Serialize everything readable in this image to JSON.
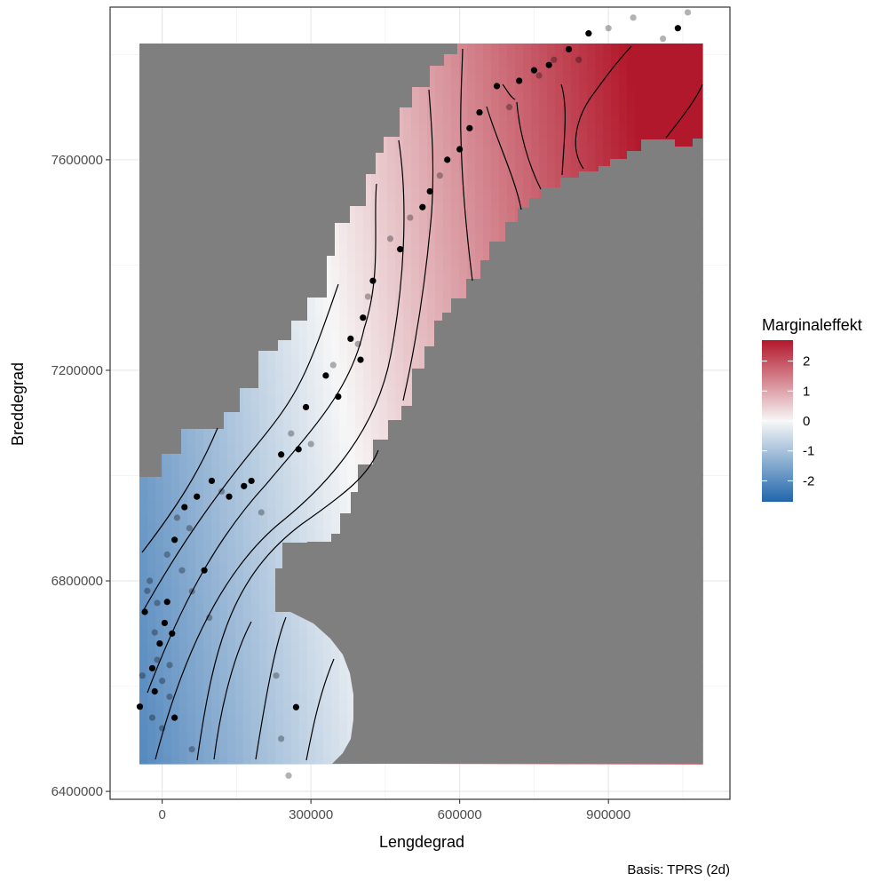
{
  "chart_data": {
    "type": "heatmap",
    "xlabel": "Lengdegrad",
    "ylabel": "Breddegrad",
    "caption": "Basis: TPRS (2d)",
    "xlim": [
      -105000,
      1145000
    ],
    "ylim": [
      6385000,
      7890000
    ],
    "x_ticks": [
      0,
      300000,
      600000,
      900000
    ],
    "x_tick_labels": [
      "0",
      "300000",
      "600000",
      "900000"
    ],
    "y_ticks": [
      6400000,
      6800000,
      7200000,
      7600000
    ],
    "y_tick_labels": [
      "6400000",
      "6800000",
      "7200000",
      "7600000"
    ],
    "grid": true,
    "legend": {
      "title": "Marginaleffekt",
      "position": "right",
      "range": [
        -2.7,
        2.7
      ],
      "breaks": [
        2,
        1,
        0,
        -1,
        -2
      ],
      "break_labels": [
        "2",
        "1",
        "0",
        "-1",
        "-2"
      ],
      "low_color": "#2166ac",
      "mid_color": "#f7f7f7",
      "high_color": "#b2182b"
    },
    "mask_color": "#7f7f7f",
    "points": [
      [
        -45000,
        6561000,
        1
      ],
      [
        -35000,
        6741000,
        1
      ],
      [
        -30000,
        6781000,
        0.3
      ],
      [
        -20000,
        6634000,
        1
      ],
      [
        -15000,
        6702000,
        0.3
      ],
      [
        -10000,
        6758000,
        0.3
      ],
      [
        -5000,
        6681000,
        1
      ],
      [
        0,
        6610000,
        0.3
      ],
      [
        5000,
        6720000,
        1
      ],
      [
        10000,
        6850000,
        0.3
      ],
      [
        15000,
        6640000,
        0.3
      ],
      [
        20000,
        6700000,
        1
      ],
      [
        25000,
        6878000,
        1
      ],
      [
        30000,
        6920000,
        0.3
      ],
      [
        45000,
        6940000,
        1
      ],
      [
        60000,
        6780000,
        0.3
      ],
      [
        70000,
        6960000,
        1
      ],
      [
        85000,
        6820000,
        1
      ],
      [
        95000,
        6730000,
        0.3
      ],
      [
        100000,
        6990000,
        1
      ],
      [
        120000,
        6970000,
        0.3
      ],
      [
        135000,
        6960000,
        1
      ],
      [
        165000,
        6980000,
        1
      ],
      [
        180000,
        6990000,
        1
      ],
      [
        240000,
        7040000,
        1
      ],
      [
        260000,
        7080000,
        0.3
      ],
      [
        275000,
        7050000,
        1
      ],
      [
        290000,
        7130000,
        1
      ],
      [
        300000,
        7060000,
        0.3
      ],
      [
        330000,
        7190000,
        1
      ],
      [
        345000,
        7210000,
        0.3
      ],
      [
        355000,
        7150000,
        1
      ],
      [
        380000,
        7260000,
        1
      ],
      [
        395000,
        7250000,
        0.3
      ],
      [
        400000,
        7220000,
        1
      ],
      [
        405000,
        7300000,
        1
      ],
      [
        415000,
        7340000,
        0.3
      ],
      [
        425000,
        7370000,
        1
      ],
      [
        460000,
        7450000,
        0.3
      ],
      [
        480000,
        7430000,
        1
      ],
      [
        500000,
        7490000,
        0.3
      ],
      [
        525000,
        7510000,
        1
      ],
      [
        540000,
        7540000,
        1
      ],
      [
        560000,
        7570000,
        0.3
      ],
      [
        575000,
        7600000,
        1
      ],
      [
        600000,
        7620000,
        1
      ],
      [
        620000,
        7660000,
        1
      ],
      [
        640000,
        7690000,
        1
      ],
      [
        675000,
        7740000,
        1
      ],
      [
        700000,
        7700000,
        0.3
      ],
      [
        720000,
        7750000,
        1
      ],
      [
        750000,
        7770000,
        1
      ],
      [
        760000,
        7760000,
        0.3
      ],
      [
        780000,
        7780000,
        1
      ],
      [
        790000,
        7790000,
        0.3
      ],
      [
        820000,
        7810000,
        1
      ],
      [
        840000,
        7790000,
        0.3
      ],
      [
        860000,
        7840000,
        1
      ],
      [
        900000,
        7850000,
        0.3
      ],
      [
        950000,
        7870000,
        0.3
      ],
      [
        1010000,
        7830000,
        0.3
      ],
      [
        1040000,
        7850000,
        1
      ],
      [
        1060000,
        7880000,
        0.3
      ],
      [
        -40000,
        6620000,
        0.3
      ],
      [
        -25000,
        6800000,
        0.3
      ],
      [
        -20000,
        6540000,
        0.3
      ],
      [
        -15000,
        6590000,
        1
      ],
      [
        -10000,
        6650000,
        0.3
      ],
      [
        0,
        6520000,
        0.3
      ],
      [
        10000,
        6760000,
        1
      ],
      [
        15000,
        6580000,
        0.3
      ],
      [
        25000,
        6540000,
        1
      ],
      [
        40000,
        6820000,
        0.3
      ],
      [
        55000,
        6900000,
        0.3
      ],
      [
        60000,
        6480000,
        0.3
      ],
      [
        200000,
        6930000,
        0.3
      ],
      [
        230000,
        6620000,
        0.3
      ],
      [
        240000,
        6500000,
        0.3
      ],
      [
        255000,
        6430000,
        0.3
      ],
      [
        270000,
        6560000,
        1
      ]
    ]
  }
}
